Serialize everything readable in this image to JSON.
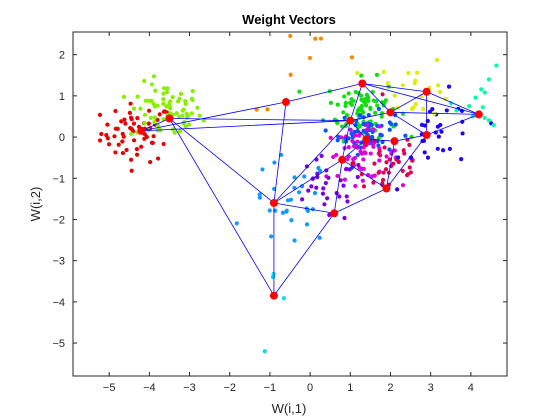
{
  "chart_data": {
    "type": "scatter",
    "title": "Weight Vectors",
    "xlabel": "W(i,1)",
    "ylabel": "W(i,2)",
    "xlim": [
      -5.9,
      4.9
    ],
    "ylim": [
      -5.8,
      2.55
    ],
    "xticks": [
      -5,
      -4,
      -3,
      -2,
      -1,
      0,
      1,
      2,
      3,
      4
    ],
    "yticks": [
      2,
      1,
      0,
      -1,
      -2,
      -3,
      -4,
      -5
    ],
    "grid": false,
    "legend": "none",
    "colors": {
      "node": "#ff0000",
      "edge": "#0000ff",
      "axis": "#262626",
      "background": "#ffffff"
    },
    "node_series": {
      "x": [
        -4.2,
        -3.5,
        -0.6,
        1.0,
        1.3,
        2.0,
        2.9,
        4.2,
        1.4,
        2.1,
        2.9,
        0.8,
        1.9,
        0.6,
        -0.9,
        -0.9
      ],
      "y": [
        0.15,
        0.45,
        0.85,
        0.4,
        1.3,
        0.6,
        1.1,
        0.55,
        -0.05,
        -0.1,
        0.05,
        -0.55,
        -1.25,
        -1.85,
        -1.6,
        -3.85
      ]
    },
    "edges": [
      [
        0,
        1
      ],
      [
        0,
        2
      ],
      [
        0,
        3
      ],
      [
        1,
        3
      ],
      [
        1,
        14
      ],
      [
        1,
        15
      ],
      [
        2,
        4
      ],
      [
        2,
        14
      ],
      [
        3,
        4
      ],
      [
        3,
        5
      ],
      [
        3,
        8
      ],
      [
        4,
        5
      ],
      [
        4,
        6
      ],
      [
        4,
        7
      ],
      [
        5,
        6
      ],
      [
        5,
        7
      ],
      [
        6,
        7
      ],
      [
        3,
        11
      ],
      [
        8,
        9
      ],
      [
        8,
        11
      ],
      [
        9,
        10
      ],
      [
        10,
        12
      ],
      [
        10,
        5
      ],
      [
        9,
        12
      ],
      [
        11,
        12
      ],
      [
        11,
        13
      ],
      [
        12,
        13
      ],
      [
        13,
        14
      ],
      [
        13,
        15
      ],
      [
        14,
        15
      ],
      [
        14,
        11
      ],
      [
        3,
        14
      ],
      [
        7,
        10
      ],
      [
        6,
        10
      ]
    ],
    "clusters": [
      {
        "color": "#e60000",
        "cx": -4.3,
        "cy": 0.1,
        "sx": 0.45,
        "sy": 0.35,
        "n": 60
      },
      {
        "color": "#88ee00",
        "cx": -3.6,
        "cy": 0.6,
        "sx": 0.45,
        "sy": 0.35,
        "n": 70
      },
      {
        "color": "#11dd11",
        "cx": 1.3,
        "cy": 0.7,
        "sx": 0.45,
        "sy": 0.35,
        "n": 80
      },
      {
        "color": "#0055ff",
        "cx": 1.4,
        "cy": 0.1,
        "sx": 0.35,
        "sy": 0.25,
        "n": 60
      },
      {
        "color": "#dd00dd",
        "cx": 1.3,
        "cy": -0.4,
        "sx": 0.45,
        "sy": 0.3,
        "n": 60
      },
      {
        "color": "#e00050",
        "cx": 2.0,
        "cy": -0.6,
        "sx": 0.45,
        "sy": 0.5,
        "n": 40
      },
      {
        "color": "#7700dd",
        "cx": 0.4,
        "cy": -1.3,
        "sx": 0.5,
        "sy": 0.4,
        "n": 30
      },
      {
        "color": "#1199ff",
        "cx": -0.5,
        "cy": -1.6,
        "sx": 0.5,
        "sy": 0.55,
        "n": 30
      },
      {
        "color": "#2200ff",
        "cx": 3.3,
        "cy": 0.0,
        "sx": 0.5,
        "sy": 0.5,
        "n": 30
      },
      {
        "color": "#ddee00",
        "cx": 2.6,
        "cy": 1.2,
        "sx": 0.5,
        "sy": 0.35,
        "n": 22
      },
      {
        "color": "#00ffaa",
        "cx": 4.4,
        "cy": 0.9,
        "sx": 0.4,
        "sy": 0.35,
        "n": 15
      },
      {
        "color": "#ff8800",
        "cx": 0.0,
        "cy": 1.7,
        "sx": 0.8,
        "sy": 0.5,
        "n": 8
      },
      {
        "color": "#00ddee",
        "cx": -0.7,
        "cy": -4.0,
        "sx": 0.3,
        "sy": 0.9,
        "n": 4
      }
    ]
  }
}
